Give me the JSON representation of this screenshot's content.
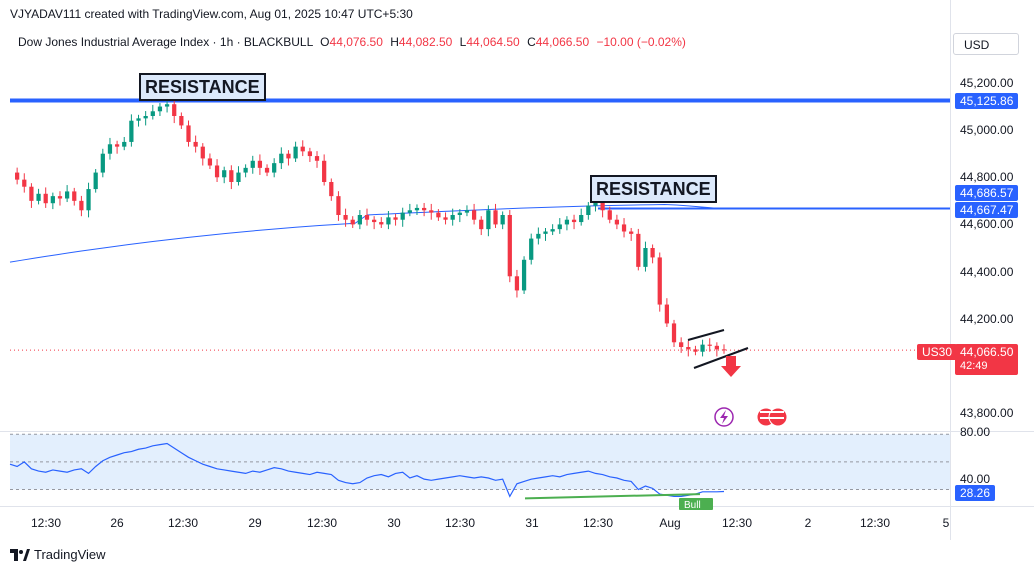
{
  "header": {
    "credit": "VJYADAV111 created with TradingView.com, Aug 01, 2025 10:47 UTC+5:30"
  },
  "legend": {
    "symbol": "Dow Jones Industrial Average Index · 1h · BLACKBULL",
    "open_label": "O",
    "open": "44,076.50",
    "high_label": "H",
    "high": "44,082.50",
    "low_label": "L",
    "low": "44,064.50",
    "close_label": "C",
    "close": "44,066.50",
    "change": "−10.00 (−0.02%)"
  },
  "currency_button": "USD",
  "price_axis": {
    "ticks": [
      "45,200.00",
      "45,000.00",
      "44,800.00",
      "44,600.00",
      "44,400.00",
      "44,200.00",
      "43,800.00"
    ],
    "tick_values": [
      45200,
      45000,
      44800,
      44600,
      44400,
      44200,
      43800
    ]
  },
  "tags": {
    "resistance_top": "45,125.86",
    "ma_value": "44,686.57",
    "resistance_mid": "44,667.47",
    "current_symbol": "US30",
    "current_price": "44,066.50",
    "countdown": "42:49",
    "rsi_value": "28.26"
  },
  "annotations": {
    "resistance_1": "RESISTANCE",
    "resistance_2": "RESISTANCE",
    "bull": "Bull"
  },
  "rsi_axis": {
    "ticks": [
      "80.00",
      "40.00"
    ]
  },
  "time_axis": {
    "labels": [
      "12:30",
      "26",
      "12:30",
      "29",
      "12:30",
      "30",
      "12:30",
      "31",
      "12:30",
      "Aug",
      "12:30",
      "2",
      "12:30",
      "5"
    ]
  },
  "footer": {
    "logo_text": "TradingView"
  },
  "colors": {
    "up": "#089981",
    "down": "#f23645",
    "resistance_line": "#2962ff",
    "ma_line": "#2962ff",
    "rsi_line": "#2962ff",
    "rsi_band": "#e3effd",
    "divergence": "#4caf50"
  },
  "chart_data": {
    "type": "candlestick",
    "title": "Dow Jones Industrial Average Index · 1h · BLACKBULL",
    "price_range": [
      43750,
      45280
    ],
    "horizontal_lines": [
      45125.86,
      44667.47
    ],
    "moving_average_end": 44686.57,
    "last_price": 44066.5,
    "close_series": [
      44820,
      44790,
      44760,
      44700,
      44730,
      44690,
      44720,
      44710,
      44740,
      44700,
      44660,
      44750,
      44820,
      44900,
      44940,
      44930,
      44950,
      45040,
      45050,
      45060,
      45080,
      45100,
      45110,
      45060,
      45020,
      44950,
      44930,
      44880,
      44850,
      44800,
      44830,
      44780,
      44820,
      44840,
      44870,
      44840,
      44820,
      44860,
      44900,
      44880,
      44930,
      44910,
      44890,
      44870,
      44780,
      44720,
      44640,
      44620,
      44600,
      44640,
      44620,
      44610,
      44600,
      44630,
      44620,
      44650,
      44660,
      44670,
      44660,
      44650,
      44630,
      44620,
      44640,
      44650,
      44660,
      44620,
      44580,
      44660,
      44600,
      44640,
      44380,
      44320,
      44450,
      44540,
      44560,
      44570,
      44580,
      44600,
      44620,
      44610,
      44640,
      44680,
      44700,
      44660,
      44620,
      44600,
      44570,
      44560,
      44420,
      44500,
      44460,
      44260,
      44180,
      44100,
      44080,
      44070,
      44060,
      44090,
      44085,
      44070,
      44066.5
    ],
    "rsi_range": [
      20,
      85
    ],
    "rsi_series": [
      52,
      50,
      54,
      48,
      46,
      45,
      47,
      46,
      45,
      47,
      48,
      44,
      50,
      55,
      58,
      60,
      62,
      63,
      65,
      66,
      68,
      69,
      70,
      66,
      62,
      58,
      55,
      52,
      50,
      48,
      47,
      46,
      45,
      44,
      46,
      45,
      47,
      49,
      48,
      46,
      45,
      44,
      43,
      45,
      44,
      43,
      38,
      36,
      35,
      36,
      40,
      42,
      43,
      41,
      44,
      45,
      40,
      42,
      39,
      38,
      39,
      40,
      41,
      42,
      41,
      40,
      41,
      40,
      38,
      39,
      24,
      35,
      37,
      39,
      40,
      41,
      42,
      41,
      43,
      44,
      45,
      46,
      44,
      43,
      41,
      40,
      38,
      37,
      30,
      33,
      31,
      26,
      25,
      24,
      24,
      25,
      26,
      28,
      28,
      28,
      28.26
    ],
    "rsi_ticks": [
      80,
      40
    ]
  }
}
